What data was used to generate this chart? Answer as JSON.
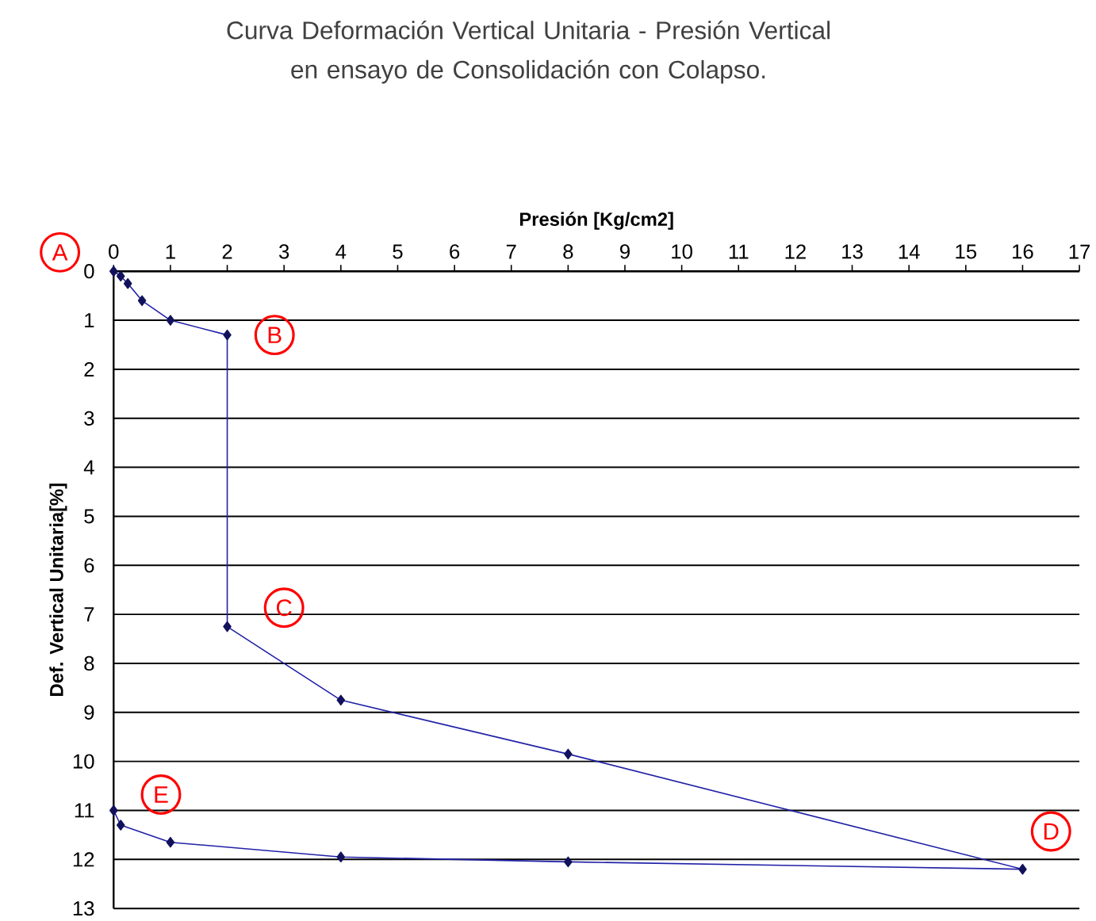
{
  "chart_data": {
    "type": "line",
    "title": "Curva Deformación Vertical Unitaria - Presión Vertical\nen ensayo de Consolidación con Colapso.",
    "xlabel": "Presión [Kg/cm2]",
    "ylabel": "Def. Vertical Unitaria[%]",
    "x": [
      0,
      0.125,
      0.25,
      0.5,
      1,
      2,
      2,
      4,
      8,
      16,
      8,
      4,
      1,
      0.125,
      0
    ],
    "series": [
      {
        "color": "#2020a8",
        "values": [
          0,
          0.1,
          0.25,
          0.6,
          1,
          1.3,
          7.25,
          8.75,
          9.85,
          12.2,
          12.05,
          11.95,
          11.65,
          11.3,
          11.0
        ]
      }
    ],
    "xlim": [
      0,
      17
    ],
    "xticks": [
      0,
      1,
      2,
      3,
      4,
      5,
      6,
      7,
      8,
      9,
      10,
      11,
      12,
      13,
      14,
      15,
      16,
      17
    ],
    "ylim": [
      13,
      0
    ],
    "yticks": [
      0,
      1,
      2,
      3,
      4,
      5,
      6,
      7,
      8,
      9,
      10,
      11,
      12,
      13
    ],
    "grid": "y",
    "marker": "diamond",
    "line_style": "solid",
    "annotations": [
      {
        "text": "A",
        "x": 0,
        "y": 0
      },
      {
        "text": "B",
        "x": 2,
        "y": 1.3
      },
      {
        "text": "C",
        "x": 2,
        "y": 7.25
      },
      {
        "text": "D",
        "x": 16,
        "y": 12.2
      },
      {
        "text": "E",
        "x": 0,
        "y": 11.0
      }
    ]
  }
}
